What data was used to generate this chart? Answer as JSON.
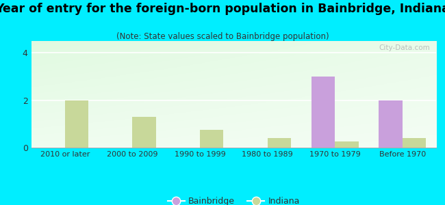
{
  "categories": [
    "2010 or later",
    "2000 to 2009",
    "1990 to 1999",
    "1980 to 1989",
    "1970 to 1979",
    "Before 1970"
  ],
  "bainbridge": [
    0,
    0,
    0,
    0,
    3.0,
    2.0
  ],
  "indiana": [
    2.0,
    1.3,
    0.75,
    0.4,
    0.25,
    0.4
  ],
  "bainbridge_color": "#c9a0dc",
  "indiana_color": "#c8d89a",
  "title": "Year of entry for the foreign-born population in Bainbridge, Indiana",
  "subtitle": "(Note: State values scaled to Bainbridge population)",
  "background_color": "#00eeff",
  "ylim": [
    0,
    4.5
  ],
  "yticks": [
    0,
    2,
    4
  ],
  "bar_width": 0.35,
  "title_fontsize": 12.5,
  "subtitle_fontsize": 8.5,
  "watermark": "City-Data.com"
}
